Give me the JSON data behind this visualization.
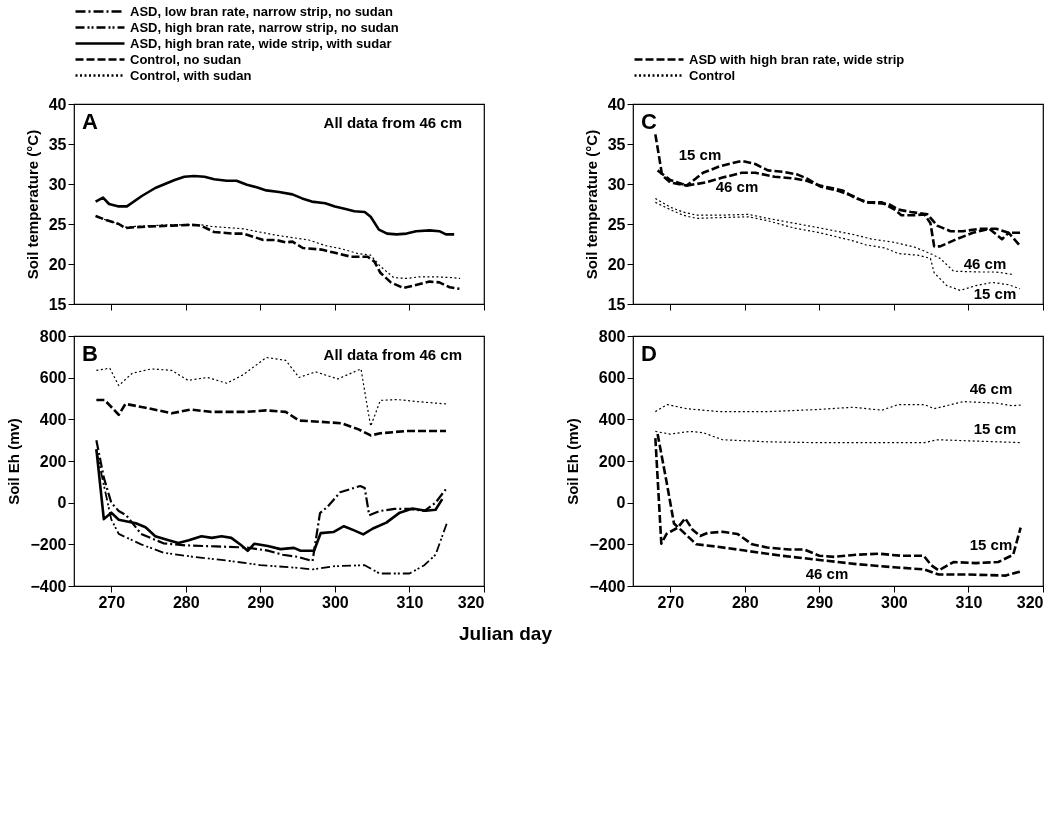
{
  "chart_data": [
    {
      "type": "line",
      "ylabel": "Soil temperature (°C)",
      "xlim": [
        265,
        320
      ],
      "xticks": [
        270,
        280,
        290,
        300,
        310,
        320
      ],
      "ylim": [
        15,
        40
      ],
      "yticks": [
        15,
        20,
        25,
        30,
        35,
        40
      ],
      "tick_labels": "y",
      "annotations": [
        "A",
        "All data from 46 cm"
      ],
      "series": [
        {
          "color": "#000000",
          "line_style": "solid",
          "x": [
            267.9,
            268.9,
            269.7,
            271,
            272.1,
            274.1,
            275.9,
            277.2,
            278.5,
            279.8,
            281.1,
            282.5,
            283.8,
            285.5,
            286.8,
            288.2,
            289.5,
            290.8,
            292.5,
            294.3,
            295.6,
            296.9,
            298.7,
            300,
            301.3,
            302.6,
            304,
            304.8,
            305.9,
            307,
            308.3,
            309.6,
            310.9,
            312.7,
            314,
            314.9,
            316
          ],
          "values": [
            27.8,
            28.3,
            27.5,
            27.2,
            27.2,
            28.5,
            29.5,
            30.0,
            30.5,
            30.9,
            31.0,
            30.9,
            30.6,
            30.4,
            30.4,
            29.9,
            29.6,
            29.2,
            29.0,
            28.7,
            28.2,
            27.8,
            27.6,
            27.2,
            26.9,
            26.6,
            26.5,
            25.9,
            24.3,
            23.8,
            23.7,
            23.8,
            24.1,
            24.2,
            24.1,
            23.7,
            23.7
          ]
        },
        {
          "color": "#000000",
          "line_style": "dashed",
          "x": [
            267.9,
            269.3,
            271,
            271.9,
            273.2,
            275.4,
            278.1,
            280.7,
            282,
            283.8,
            286.4,
            287.7,
            290.4,
            292.1,
            293.4,
            294.3,
            295.7,
            298.2,
            300,
            302.2,
            304.4,
            305.3,
            306.1,
            307.5,
            309.2,
            311,
            312.7,
            314,
            315.4,
            316.7
          ],
          "values": [
            26.0,
            25.5,
            25.0,
            24.5,
            24.6,
            24.7,
            24.8,
            24.9,
            24.8,
            24.0,
            23.8,
            23.8,
            23.0,
            23.0,
            22.7,
            22.8,
            22.0,
            21.8,
            21.4,
            20.9,
            20.9,
            20.3,
            18.9,
            17.7,
            17.0,
            17.4,
            17.8,
            17.7,
            17.1,
            16.9
          ]
        },
        {
          "color": "#000000",
          "line_style": "dotted",
          "x": [
            267.9,
            269.3,
            271,
            271.9,
            273.2,
            275.4,
            278.1,
            280.7,
            282,
            283.4,
            287.7,
            292.1,
            296.5,
            298.7,
            300.9,
            303.1,
            304.8,
            306.1,
            307.9,
            309.6,
            311.4,
            313.5,
            315.7,
            316.8
          ],
          "values": [
            26.0,
            25.5,
            25.0,
            24.6,
            24.7,
            24.8,
            24.9,
            24.9,
            24.9,
            24.7,
            24.4,
            23.6,
            23.0,
            22.3,
            21.9,
            21.3,
            21.1,
            19.7,
            18.3,
            18.2,
            18.4,
            18.4,
            18.3,
            18.2
          ]
        }
      ]
    },
    {
      "type": "line",
      "ylabel": "Soil Eh (mv)",
      "xlabel": "Julian day",
      "xlim": [
        265,
        320
      ],
      "xticks": [
        270,
        280,
        290,
        300,
        310,
        320
      ],
      "ylim": [
        -400,
        800
      ],
      "yticks": [
        -400,
        -200,
        0,
        200,
        400,
        600,
        800
      ],
      "legend": "top",
      "annotations": [
        "B",
        "All data from 46 cm"
      ],
      "series": [
        {
          "name": "ASD, low bran rate, narrow strip, no sudan",
          "color": "#000000",
          "line_style": "dashdot",
          "x": [
            268,
            269,
            270,
            271,
            272,
            274,
            277,
            280,
            284,
            288,
            291,
            293,
            295,
            297,
            298,
            299,
            300.7,
            303.4,
            304,
            304.6,
            306,
            308,
            310,
            312,
            313.5,
            315
          ],
          "values": [
            300,
            120,
            0,
            -40,
            -60,
            -150,
            -195,
            -205,
            -210,
            -215,
            -230,
            -250,
            -260,
            -280,
            -50,
            -20,
            50,
            80,
            70,
            -60,
            -40,
            -30,
            -30,
            -40,
            0,
            70
          ]
        },
        {
          "name": "ASD, high bran rate, narrow strip, no sudan",
          "color": "#000000",
          "line_style": "dashdotdot",
          "x": [
            268,
            270,
            271,
            274,
            277,
            281,
            286,
            290,
            294,
            297,
            300,
            304,
            306,
            310,
            312,
            313.5,
            315
          ],
          "values": [
            250,
            -80,
            -150,
            -200,
            -240,
            -260,
            -280,
            -300,
            -310,
            -320,
            -305,
            -300,
            -340,
            -340,
            -300,
            -250,
            -100
          ]
        },
        {
          "name": "ASD, high bran rate, wide strip, with sudar",
          "color": "#000000",
          "line_style": "solid",
          "x": [
            268,
            269,
            270,
            271,
            273.3,
            274.6,
            275.9,
            277.7,
            279,
            280.4,
            282.1,
            283.5,
            284.8,
            286.1,
            287.4,
            288.3,
            289.2,
            291,
            292.7,
            294.5,
            295.4,
            297.2,
            298.1,
            299.8,
            301.2,
            302.5,
            303.8,
            305.1,
            306.9,
            308.7,
            310.4,
            312.2,
            313.5,
            314.4
          ],
          "values": [
            257,
            -79,
            -48,
            -82,
            -99,
            -118,
            -161,
            -180,
            -194,
            -180,
            -161,
            -169,
            -161,
            -169,
            -203,
            -231,
            -197,
            -208,
            -223,
            -217,
            -231,
            -231,
            -146,
            -141,
            -113,
            -132,
            -152,
            -124,
            -96,
            -48,
            -28,
            -39,
            -34,
            17
          ]
        },
        {
          "name": "Control, no sudan",
          "color": "#000000",
          "line_style": "dashed",
          "x": [
            268,
            269.1,
            271,
            271.9,
            274.6,
            278.1,
            280.7,
            283.3,
            286,
            288.2,
            290.8,
            293.4,
            295.2,
            298.2,
            300.9,
            303.1,
            304.8,
            306.1,
            309.6,
            314.9
          ],
          "values": [
            493,
            493,
            422,
            474,
            456,
            429,
            447,
            436,
            436,
            436,
            443,
            436,
            394,
            388,
            381,
            353,
            323,
            333,
            344,
            344
          ]
        },
        {
          "name": "Control, with sudan",
          "color": "#000000",
          "line_style": "dotted",
          "x": [
            268,
            269.8,
            271,
            272.8,
            275.4,
            278.1,
            280.3,
            282.9,
            285.5,
            287.7,
            290.8,
            293.4,
            295.2,
            297.4,
            300.4,
            303.5,
            304.2,
            304.8,
            306.1,
            308.3,
            311.4,
            314.9
          ],
          "values": [
            635,
            645,
            562,
            621,
            642,
            635,
            587,
            601,
            573,
            614,
            697,
            683,
            601,
            628,
            594,
            642,
            491,
            367,
            491,
            495,
            484,
            474
          ]
        }
      ]
    },
    {
      "type": "line",
      "ylabel": "Soil temperature (°C)",
      "xlim": [
        265,
        320
      ],
      "xticks": [
        270,
        280,
        290,
        300,
        310,
        320
      ],
      "ylim": [
        15,
        40
      ],
      "yticks": [
        15,
        20,
        25,
        30,
        35,
        40
      ],
      "tick_labels": "y",
      "legend": "top",
      "annotations": [
        "C",
        "15 cm",
        "46 cm",
        "46 cm",
        "15 cm"
      ],
      "series": [
        {
          "name": "ASD with high bran rate, wide strip",
          "color": "#000000",
          "line_style": "dashed",
          "x": [
            268,
            268.5,
            268.9,
            270,
            272.2,
            274.4,
            276.6,
            279.6,
            281.4,
            283.1,
            285.3,
            287,
            288.3,
            290.1,
            292.7,
            294.5,
            296.2,
            298.4,
            300.1,
            301,
            302.8,
            304.1,
            304.9,
            305.4,
            306.2,
            308.4,
            310.6,
            312.8,
            314.5,
            315.4,
            316.9
          ],
          "values": [
            36.2,
            33.4,
            31.1,
            30.2,
            29.8,
            31.4,
            32.2,
            32.9,
            32.5,
            31.7,
            31.5,
            31.2,
            30.7,
            29.7,
            29.1,
            28.5,
            27.7,
            27.7,
            26.8,
            26.1,
            26.1,
            26.2,
            25.1,
            22.2,
            22.2,
            23.1,
            23.9,
            24.4,
            23.1,
            23.9,
            22.3
          ]
        },
        {
          "color": "#000000",
          "line_style": "dashed",
          "x": [
            268.3,
            270,
            272.2,
            274.8,
            277,
            279.6,
            281.4,
            284,
            286.6,
            288.3,
            290.1,
            293.1,
            294.9,
            296.6,
            299.3,
            300.6,
            302.3,
            304.5,
            305.8,
            307.6,
            309.3,
            311.5,
            313.7,
            315.4,
            317
          ],
          "values": [
            31.7,
            30.5,
            29.8,
            30.2,
            30.8,
            31.4,
            31.4,
            30.9,
            30.7,
            30.4,
            29.8,
            29.2,
            28.2,
            27.7,
            27.5,
            26.8,
            26.5,
            26.2,
            24.8,
            24.1,
            24.1,
            24.4,
            24.4,
            23.9,
            23.9
          ]
        },
        {
          "name": "Control",
          "color": "#000000",
          "line_style": "dotted",
          "x": [
            268,
            270,
            271.7,
            273.5,
            276.6,
            280.5,
            283.1,
            286.6,
            290.1,
            294.5,
            297.1,
            300.1,
            302.8,
            304.9,
            306.2,
            308,
            311.5,
            313.7,
            315.9
          ],
          "values": [
            28.2,
            27.1,
            26.5,
            26.1,
            26.1,
            26.2,
            25.7,
            25.1,
            24.5,
            23.7,
            23.1,
            22.7,
            22.1,
            21.3,
            20.7,
            19.1,
            19.0,
            19.0,
            18.7
          ]
        },
        {
          "color": "#000000",
          "line_style": "dotted",
          "x": [
            268,
            270,
            271.7,
            273.5,
            276.6,
            280.5,
            283.1,
            286.6,
            290.1,
            294.5,
            296.2,
            298.8,
            300.6,
            303.2,
            304.9,
            305.4,
            307.1,
            308.9,
            311,
            313.2,
            315.4,
            316.9
          ],
          "values": [
            27.7,
            26.8,
            26.1,
            25.7,
            25.8,
            25.9,
            25.4,
            24.5,
            23.9,
            22.9,
            22.4,
            22.0,
            21.3,
            21.1,
            20.7,
            18.9,
            17.3,
            16.7,
            17.3,
            17.7,
            17.4,
            16.9
          ]
        }
      ]
    },
    {
      "type": "line",
      "ylabel": "Soil Eh (mv)",
      "xlim": [
        265,
        320
      ],
      "xticks": [
        270,
        280,
        290,
        300,
        310,
        320
      ],
      "ylim": [
        -400,
        800
      ],
      "yticks": [
        -400,
        -200,
        0,
        200,
        400,
        600,
        800
      ],
      "annotations": [
        "D",
        "46 cm",
        "15 cm",
        "15 cm",
        "46 cm"
      ],
      "series": [
        {
          "color": "#000000",
          "line_style": "dashed",
          "x": [
            268,
            268.8,
            269.5,
            271,
            272,
            273,
            274,
            275,
            277,
            279,
            281,
            283,
            286,
            288,
            290,
            292,
            295,
            298,
            301,
            304,
            305,
            306,
            308,
            311,
            314,
            316,
            317
          ],
          "values": [
            310,
            -197,
            -150,
            -120,
            -75,
            -130,
            -160,
            -145,
            -140,
            -150,
            -200,
            -215,
            -225,
            -225,
            -255,
            -260,
            -250,
            -245,
            -255,
            -255,
            -300,
            -325,
            -285,
            -290,
            -285,
            -250,
            -120
          ]
        },
        {
          "color": "#000000",
          "line_style": "dashed",
          "x": [
            268.3,
            269.5,
            270.5,
            272,
            273.5,
            276,
            280,
            285,
            290,
            295,
            300,
            304,
            306,
            310,
            315,
            317
          ],
          "values": [
            330,
            100,
            -100,
            -150,
            -200,
            -210,
            -230,
            -255,
            -275,
            -295,
            -310,
            -320,
            -345,
            -345,
            -350,
            -330
          ]
        },
        {
          "color": "#000000",
          "line_style": "dotted",
          "x": [
            268,
            269.6,
            272.2,
            276.6,
            283.1,
            289.7,
            294.5,
            298.4,
            300.6,
            304.1,
            305.4,
            309.3,
            313.7,
            315.9,
            317.2
          ],
          "values": [
            437,
            471,
            451,
            437,
            437,
            447,
            458,
            444,
            471,
            471,
            451,
            485,
            478,
            465,
            469
          ]
        },
        {
          "color": "#000000",
          "line_style": "dotted",
          "x": [
            268,
            270,
            272.6,
            274.4,
            277,
            283.1,
            289.7,
            296.2,
            304.1,
            305.8,
            311.5,
            317.2
          ],
          "values": [
            342,
            329,
            342,
            336,
            302,
            292,
            288,
            288,
            288,
            302,
            295,
            288
          ]
        }
      ]
    }
  ]
}
